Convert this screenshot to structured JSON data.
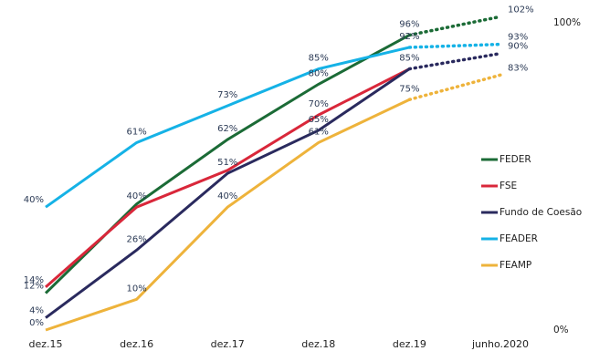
{
  "chart_data": {
    "type": "line",
    "categories": [
      "dez.15",
      "dez.16",
      "dez.17",
      "dez.18",
      "dez.19",
      "junho.2020"
    ],
    "ylim": [
      0,
      100
    ],
    "yticks": [
      {
        "value": 0,
        "label": "0%"
      },
      {
        "value": 100,
        "label": "100%"
      }
    ],
    "dotted_last_segment": true,
    "series": [
      {
        "name": "FEDER",
        "color": "#1b6b36",
        "values": [
          12,
          41,
          62,
          80,
          96,
          102
        ],
        "value_labels": [
          "12%",
          null,
          "62%",
          "80%",
          "96%",
          "102%"
        ]
      },
      {
        "name": "FSE",
        "color": "#d9273a",
        "values": [
          14,
          40,
          52,
          70,
          85,
          null
        ],
        "value_labels": [
          "14%",
          "40%",
          null,
          "70%",
          null,
          null
        ]
      },
      {
        "name": "Fundo de Coesão",
        "color": "#2a2a5e",
        "values": [
          4,
          26,
          51,
          65,
          85,
          90
        ],
        "value_labels": [
          "4%",
          "26%",
          "51%",
          "65%",
          "85%",
          "90%"
        ]
      },
      {
        "name": "FEADER",
        "color": "#15b2e6",
        "values": [
          40,
          61,
          73,
          85,
          92,
          93
        ],
        "value_labels": [
          "40%",
          "61%",
          "73%",
          "85%",
          "92%",
          "93%"
        ]
      },
      {
        "name": "FEAMP",
        "color": "#eeb33b",
        "values": [
          0,
          10,
          40,
          61,
          75,
          83
        ],
        "value_labels": [
          "0%",
          "10%",
          "40%",
          "61%",
          "75%",
          "83%"
        ]
      }
    ]
  }
}
